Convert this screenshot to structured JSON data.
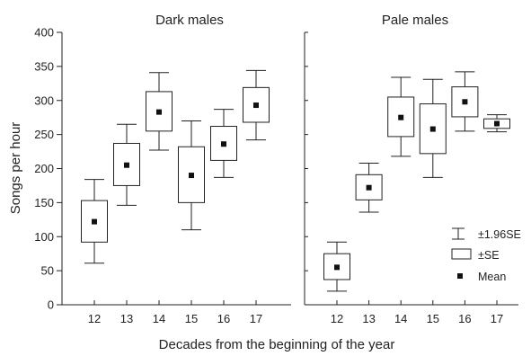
{
  "chart_data": {
    "type": "box",
    "ylabel": "Songs per hour",
    "xlabel": "Decades from the beginning of the year",
    "ylim": [
      0,
      400
    ],
    "yticks": [
      0,
      50,
      100,
      150,
      200,
      250,
      300,
      350,
      400
    ],
    "legend": {
      "placement": "right of right panel",
      "whisker_label": "±1.96SE",
      "box_label": "±SE",
      "mean_label": "Mean"
    },
    "panels": [
      {
        "title": "Dark males",
        "categories": [
          "12",
          "13",
          "14",
          "15",
          "16",
          "17"
        ],
        "mean": [
          122,
          205,
          283,
          190,
          236,
          293
        ],
        "se_low": [
          92,
          175,
          255,
          150,
          212,
          268
        ],
        "se_high": [
          153,
          237,
          313,
          232,
          262,
          319
        ],
        "ci_low": [
          61,
          146,
          227,
          110,
          187,
          242
        ],
        "ci_high": [
          184,
          265,
          341,
          270,
          287,
          344
        ]
      },
      {
        "title": "Pale males",
        "categories": [
          "12",
          "13",
          "14",
          "15",
          "16",
          "17"
        ],
        "mean": [
          55,
          172,
          275,
          258,
          298,
          266
        ],
        "se_low": [
          37,
          154,
          247,
          222,
          276,
          259
        ],
        "se_high": [
          75,
          191,
          305,
          295,
          320,
          273
        ],
        "ci_low": [
          20,
          136,
          218,
          187,
          255,
          254
        ],
        "ci_high": [
          92,
          208,
          334,
          331,
          342,
          279
        ]
      }
    ]
  }
}
